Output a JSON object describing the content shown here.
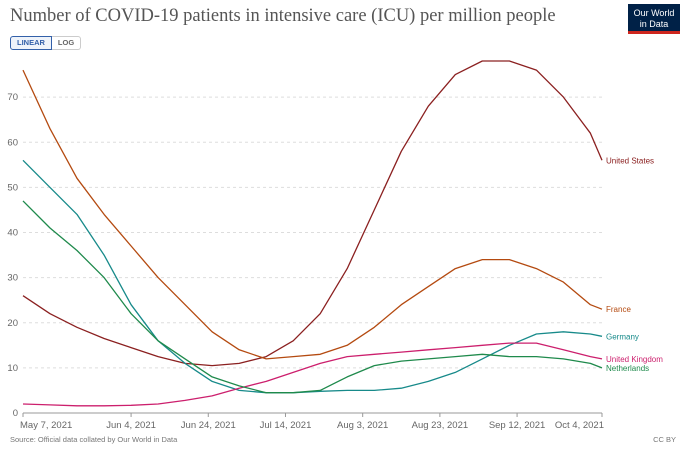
{
  "title": "Number of COVID-19 patients in intensive care (ICU) per million people",
  "logo": {
    "line1": "Our World",
    "line2": "in Data"
  },
  "scale_toggle": {
    "linear": "LINEAR",
    "log": "LOG",
    "selected": "LINEAR"
  },
  "footer": {
    "source": "Source: Official data collated by Our World in Data",
    "license": "CC BY"
  },
  "chart_data": {
    "type": "line",
    "title": "Number of COVID-19 patients in intensive care (ICU) per million people",
    "x_ticks": [
      "May 7, 2021",
      "Jun 4, 2021",
      "Jun 24, 2021",
      "Jul 14, 2021",
      "Aug 3, 2021",
      "Aug 23, 2021",
      "Sep 12, 2021",
      "Oct 4, 2021"
    ],
    "x_tick_days": [
      0,
      28,
      48,
      68,
      88,
      108,
      128,
      150
    ],
    "x_range": [
      "May 7, 2021",
      "Oct 4, 2021"
    ],
    "y_ticks": [
      0,
      10,
      20,
      30,
      40,
      50,
      60,
      70
    ],
    "ylim": [
      0,
      80
    ],
    "grid": "horizontal dashed",
    "series": [
      {
        "name": "United States",
        "color": "#8b2020",
        "x": [
          0,
          7,
          14,
          21,
          28,
          35,
          42,
          49,
          56,
          63,
          70,
          77,
          84,
          91,
          98,
          105,
          112,
          119,
          126,
          133,
          140,
          147,
          150
        ],
        "values": [
          26,
          22,
          19,
          16.5,
          14.5,
          12.5,
          11,
          10.5,
          11,
          12.5,
          16,
          22,
          32,
          45,
          58,
          68,
          75,
          78,
          78,
          76,
          70,
          62,
          56
        ]
      },
      {
        "name": "France",
        "color": "#b44a10",
        "x": [
          0,
          7,
          14,
          21,
          28,
          35,
          42,
          49,
          56,
          63,
          70,
          77,
          84,
          91,
          98,
          105,
          112,
          119,
          126,
          133,
          140,
          147,
          150
        ],
        "values": [
          76,
          63,
          52,
          44,
          37,
          30,
          24,
          18,
          14,
          12,
          12.5,
          13,
          15,
          19,
          24,
          28,
          32,
          34,
          34,
          32,
          29,
          24,
          23
        ]
      },
      {
        "name": "Germany",
        "color": "#178a8a",
        "x": [
          0,
          7,
          14,
          21,
          28,
          35,
          42,
          49,
          56,
          63,
          70,
          77,
          84,
          91,
          98,
          105,
          112,
          119,
          126,
          133,
          140,
          147,
          150
        ],
        "values": [
          56,
          50,
          44,
          35,
          24,
          16,
          11,
          7,
          5,
          4.5,
          4.5,
          4.8,
          5,
          5,
          5.5,
          7,
          9,
          12,
          15,
          17.5,
          18,
          17.5,
          17
        ]
      },
      {
        "name": "United Kingdom",
        "color": "#cc1f6d",
        "x": [
          0,
          7,
          14,
          21,
          28,
          35,
          42,
          49,
          56,
          63,
          70,
          77,
          84,
          91,
          98,
          105,
          112,
          119,
          126,
          133,
          140,
          147,
          150
        ],
        "values": [
          2,
          1.8,
          1.6,
          1.6,
          1.7,
          2,
          2.8,
          3.8,
          5.5,
          7,
          9,
          11,
          12.5,
          13,
          13.5,
          14,
          14.5,
          15,
          15.5,
          15.5,
          14,
          12.5,
          12
        ]
      },
      {
        "name": "Netherlands",
        "color": "#1f8a4c",
        "x": [
          0,
          7,
          14,
          21,
          28,
          35,
          42,
          49,
          56,
          63,
          70,
          77,
          84,
          91,
          98,
          105,
          112,
          119,
          126,
          133,
          140,
          147,
          150
        ],
        "values": [
          47,
          41,
          36,
          30,
          22,
          16,
          12,
          8,
          6,
          4.5,
          4.5,
          5,
          8,
          10.5,
          11.5,
          12,
          12.5,
          13,
          12.5,
          12.5,
          12,
          11,
          10
        ]
      }
    ]
  }
}
